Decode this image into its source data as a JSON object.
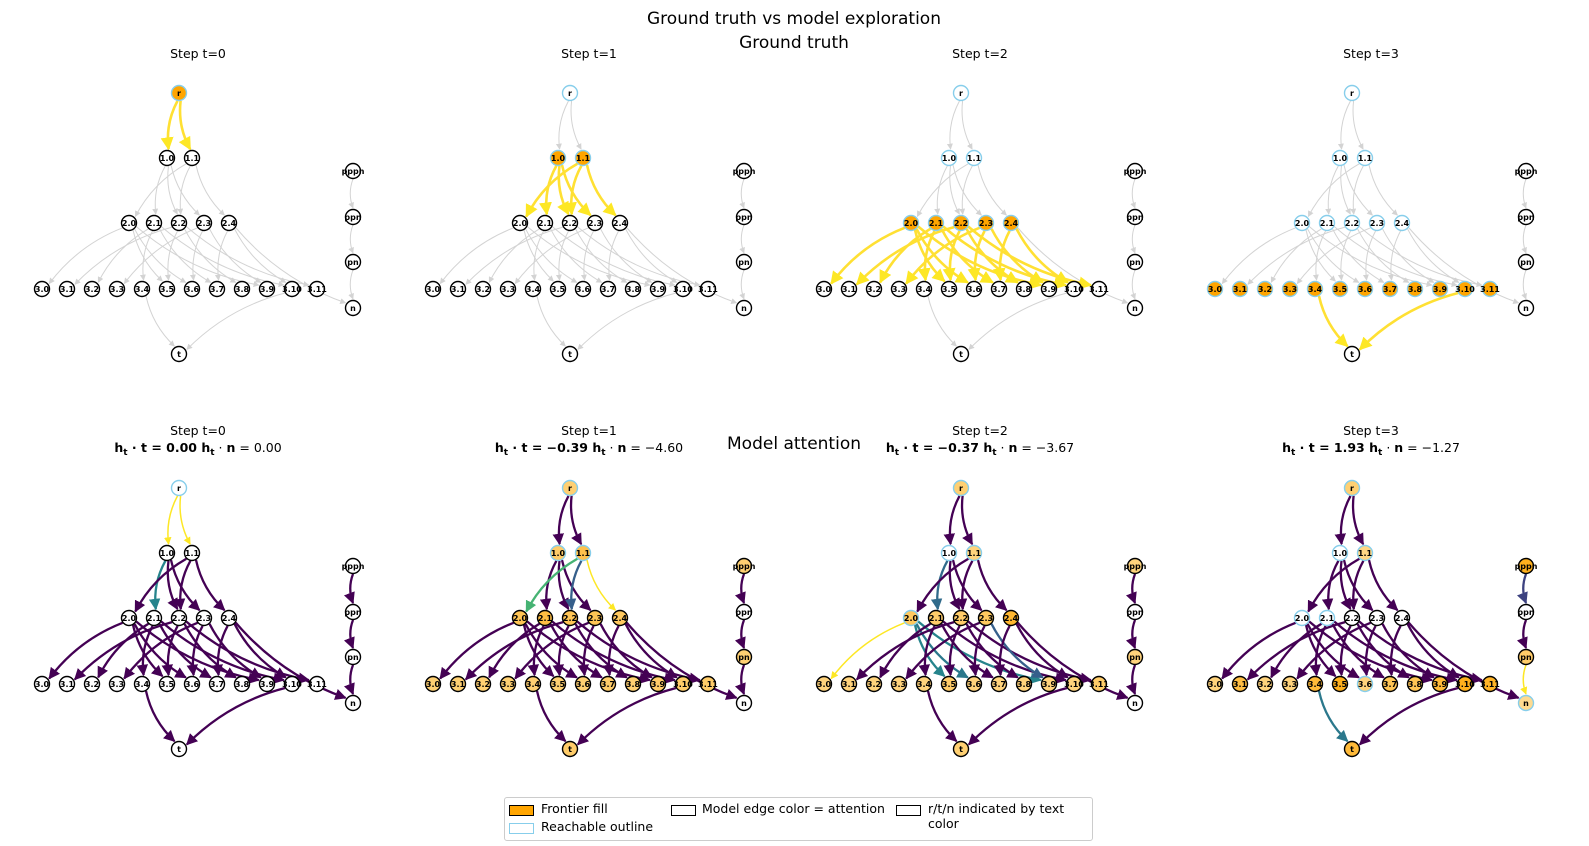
{
  "suptitle": "Ground truth vs model exploration",
  "rows": {
    "ground_truth_title": "Ground truth",
    "model_title": "Model attention"
  },
  "steps": [
    {
      "title": "Step t=0",
      "h_t": "0.00",
      "h_n": "0.00"
    },
    {
      "title": "Step t=1",
      "h_t": "−0.39",
      "h_n": "−4.60"
    },
    {
      "title": "Step t=2",
      "h_t": "−0.37",
      "h_n": "−3.67"
    },
    {
      "title": "Step t=3",
      "h_t": "1.93",
      "h_n": "−1.27"
    }
  ],
  "nodes": {
    "r": "r",
    "layer1": [
      "1.0",
      "1.1"
    ],
    "layer2": [
      "2.0",
      "2.1",
      "2.2",
      "2.3",
      "2.4"
    ],
    "layer3": [
      "3.0",
      "3.1",
      "3.2",
      "3.3",
      "3.4",
      "3.5",
      "3.6",
      "3.7",
      "3.8",
      "3.9",
      "3.10",
      "3.11"
    ],
    "t": "t",
    "side": [
      "pppn",
      "ppn",
      "pn",
      "n"
    ]
  },
  "graph_edges": [
    [
      "r",
      "1.0"
    ],
    [
      "r",
      "1.1"
    ],
    [
      "1.0",
      "2.1"
    ],
    [
      "1.0",
      "2.2"
    ],
    [
      "1.0",
      "2.3"
    ],
    [
      "1.1",
      "2.0"
    ],
    [
      "1.1",
      "2.2"
    ],
    [
      "1.1",
      "2.4"
    ],
    [
      "2.0",
      "3.0"
    ],
    [
      "2.0",
      "3.5"
    ],
    [
      "2.0",
      "3.6"
    ],
    [
      "2.0",
      "3.9"
    ],
    [
      "2.1",
      "3.2"
    ],
    [
      "2.1",
      "3.4"
    ],
    [
      "2.1",
      "3.7"
    ],
    [
      "2.1",
      "3.10"
    ],
    [
      "2.2",
      "3.1"
    ],
    [
      "2.2",
      "3.5"
    ],
    [
      "2.2",
      "3.8"
    ],
    [
      "2.2",
      "3.11"
    ],
    [
      "2.3",
      "3.3"
    ],
    [
      "2.3",
      "3.6"
    ],
    [
      "2.3",
      "3.9"
    ],
    [
      "2.4",
      "3.7"
    ],
    [
      "2.4",
      "3.10"
    ],
    [
      "2.4",
      "n"
    ],
    [
      "3.4",
      "t"
    ],
    [
      "3.10",
      "t"
    ],
    [
      "pppn",
      "ppn"
    ],
    [
      "ppn",
      "pn"
    ],
    [
      "pn",
      "n"
    ]
  ],
  "ground_truth": [
    {
      "frontier": [
        "r"
      ],
      "reachable": [],
      "highlight_edges": [
        [
          "r",
          "1.0"
        ],
        [
          "r",
          "1.1"
        ]
      ]
    },
    {
      "frontier": [
        "1.0",
        "1.1"
      ],
      "reachable": [
        "r"
      ],
      "highlight_edges": [
        [
          "1.0",
          "2.1"
        ],
        [
          "1.0",
          "2.2"
        ],
        [
          "1.0",
          "2.3"
        ],
        [
          "1.1",
          "2.0"
        ],
        [
          "1.1",
          "2.2"
        ],
        [
          "1.1",
          "2.4"
        ]
      ]
    },
    {
      "frontier": [
        "2.0",
        "2.1",
        "2.2",
        "2.3",
        "2.4"
      ],
      "reachable": [
        "r",
        "1.0",
        "1.1"
      ],
      "highlight_edges": [
        [
          "2.0",
          "3.0"
        ],
        [
          "2.0",
          "3.5"
        ],
        [
          "2.0",
          "3.6"
        ],
        [
          "2.0",
          "3.9"
        ],
        [
          "2.1",
          "3.2"
        ],
        [
          "2.1",
          "3.4"
        ],
        [
          "2.1",
          "3.7"
        ],
        [
          "2.1",
          "3.10"
        ],
        [
          "2.2",
          "3.1"
        ],
        [
          "2.2",
          "3.5"
        ],
        [
          "2.2",
          "3.8"
        ],
        [
          "2.2",
          "3.11"
        ],
        [
          "2.3",
          "3.3"
        ],
        [
          "2.3",
          "3.6"
        ],
        [
          "2.3",
          "3.9"
        ],
        [
          "2.4",
          "3.7"
        ],
        [
          "2.4",
          "3.10"
        ]
      ]
    },
    {
      "frontier": [
        "3.0",
        "3.1",
        "3.2",
        "3.3",
        "3.4",
        "3.5",
        "3.6",
        "3.7",
        "3.8",
        "3.9",
        "3.10",
        "3.11"
      ],
      "reachable": [
        "r",
        "1.0",
        "1.1",
        "2.0",
        "2.1",
        "2.2",
        "2.3",
        "2.4"
      ],
      "highlight_edges": [
        [
          "3.4",
          "t"
        ],
        [
          "3.10",
          "t"
        ]
      ]
    }
  ],
  "model": [
    {
      "fills": {},
      "reachable": [
        "r"
      ],
      "edge_attention": {
        "r>1.0": 1.0,
        "r>1.1": 1.0,
        "1.0>2.1": 0.45
      }
    },
    {
      "fills": {
        "r": 0.4,
        "1.0": 0.45,
        "1.1": 0.6,
        "2.0": 0.55,
        "2.1": 0.65,
        "2.2": 0.55,
        "2.3": 0.55,
        "2.4": 0.5,
        "3.0": 0.4,
        "3.1": 0.4,
        "3.2": 0.4,
        "3.3": 0.4,
        "3.4": 0.4,
        "3.5": 0.4,
        "3.6": 0.4,
        "3.7": 0.45,
        "3.8": 0.4,
        "3.9": 0.45,
        "3.10": 0.45,
        "3.11": 0.45,
        "pppn": 0.4,
        "pn": 0.4,
        "t": 0.45
      },
      "reachable": [
        "r",
        "1.0",
        "1.1"
      ],
      "edge_attention": {
        "1.1>2.0": 0.65,
        "1.1>2.2": 0.3,
        "1.1>2.4": 1.0
      }
    },
    {
      "fills": {
        "r": 0.4,
        "1.1": 0.35,
        "2.0": 0.5,
        "2.1": 0.45,
        "2.2": 0.45,
        "2.3": 0.5,
        "2.4": 0.75,
        "3.0": 0.35,
        "3.1": 0.35,
        "3.2": 0.35,
        "3.3": 0.35,
        "3.4": 0.35,
        "3.5": 0.45,
        "3.6": 0.35,
        "3.7": 0.35,
        "3.8": 0.35,
        "3.9": 0.35,
        "3.10": 0.35,
        "3.11": 0.45,
        "pppn": 0.35,
        "pn": 0.35,
        "t": 0.4
      },
      "reachable": [
        "r",
        "1.0",
        "1.1",
        "2.0"
      ],
      "edge_attention": {
        "2.0>3.0": 1.0,
        "2.0>3.5": 0.45,
        "2.0>3.6": 0.4,
        "2.0>3.9": 0.45,
        "1.0>2.1": 0.35,
        "2.3>3.9": 0.3,
        "2.0>3.11": 0.4
      }
    },
    {
      "fills": {
        "r": 0.4,
        "1.0": 0.0,
        "1.1": 0.3,
        "2.0": 0.0,
        "3.0": 0.35,
        "3.1": 0.65,
        "3.2": 0.35,
        "3.3": 0.35,
        "3.4": 0.7,
        "3.5": 0.85,
        "3.6": 0.35,
        "3.7": 0.55,
        "3.8": 0.55,
        "3.9": 0.7,
        "3.10": 0.85,
        "3.11": 0.8,
        "pppn": 0.85,
        "ppn": 0.0,
        "pn": 0.45,
        "n": 0.25,
        "t": 0.7
      },
      "reachable": [
        "r",
        "1.0",
        "1.1",
        "2.0",
        "2.1",
        "3.6",
        "n"
      ],
      "edge_attention": {
        "3.4>t": 0.4,
        "pppn>ppn": 0.2,
        "pn>n": 1.0
      }
    }
  ],
  "legend": {
    "frontier": "Frontier fill",
    "reachable": "Reachable outline",
    "model_edge": "Model edge color = attention",
    "rtn": "r/t/n indicated by text color"
  },
  "colors": {
    "frontier": "#ffa500",
    "reachable": "#87ceeb",
    "base_edge": "#d3d3d3",
    "gt_edge": "#ffe033",
    "n_text": "#cc0000",
    "t_text": "#2e7d32",
    "r_text": "#d2691e"
  }
}
